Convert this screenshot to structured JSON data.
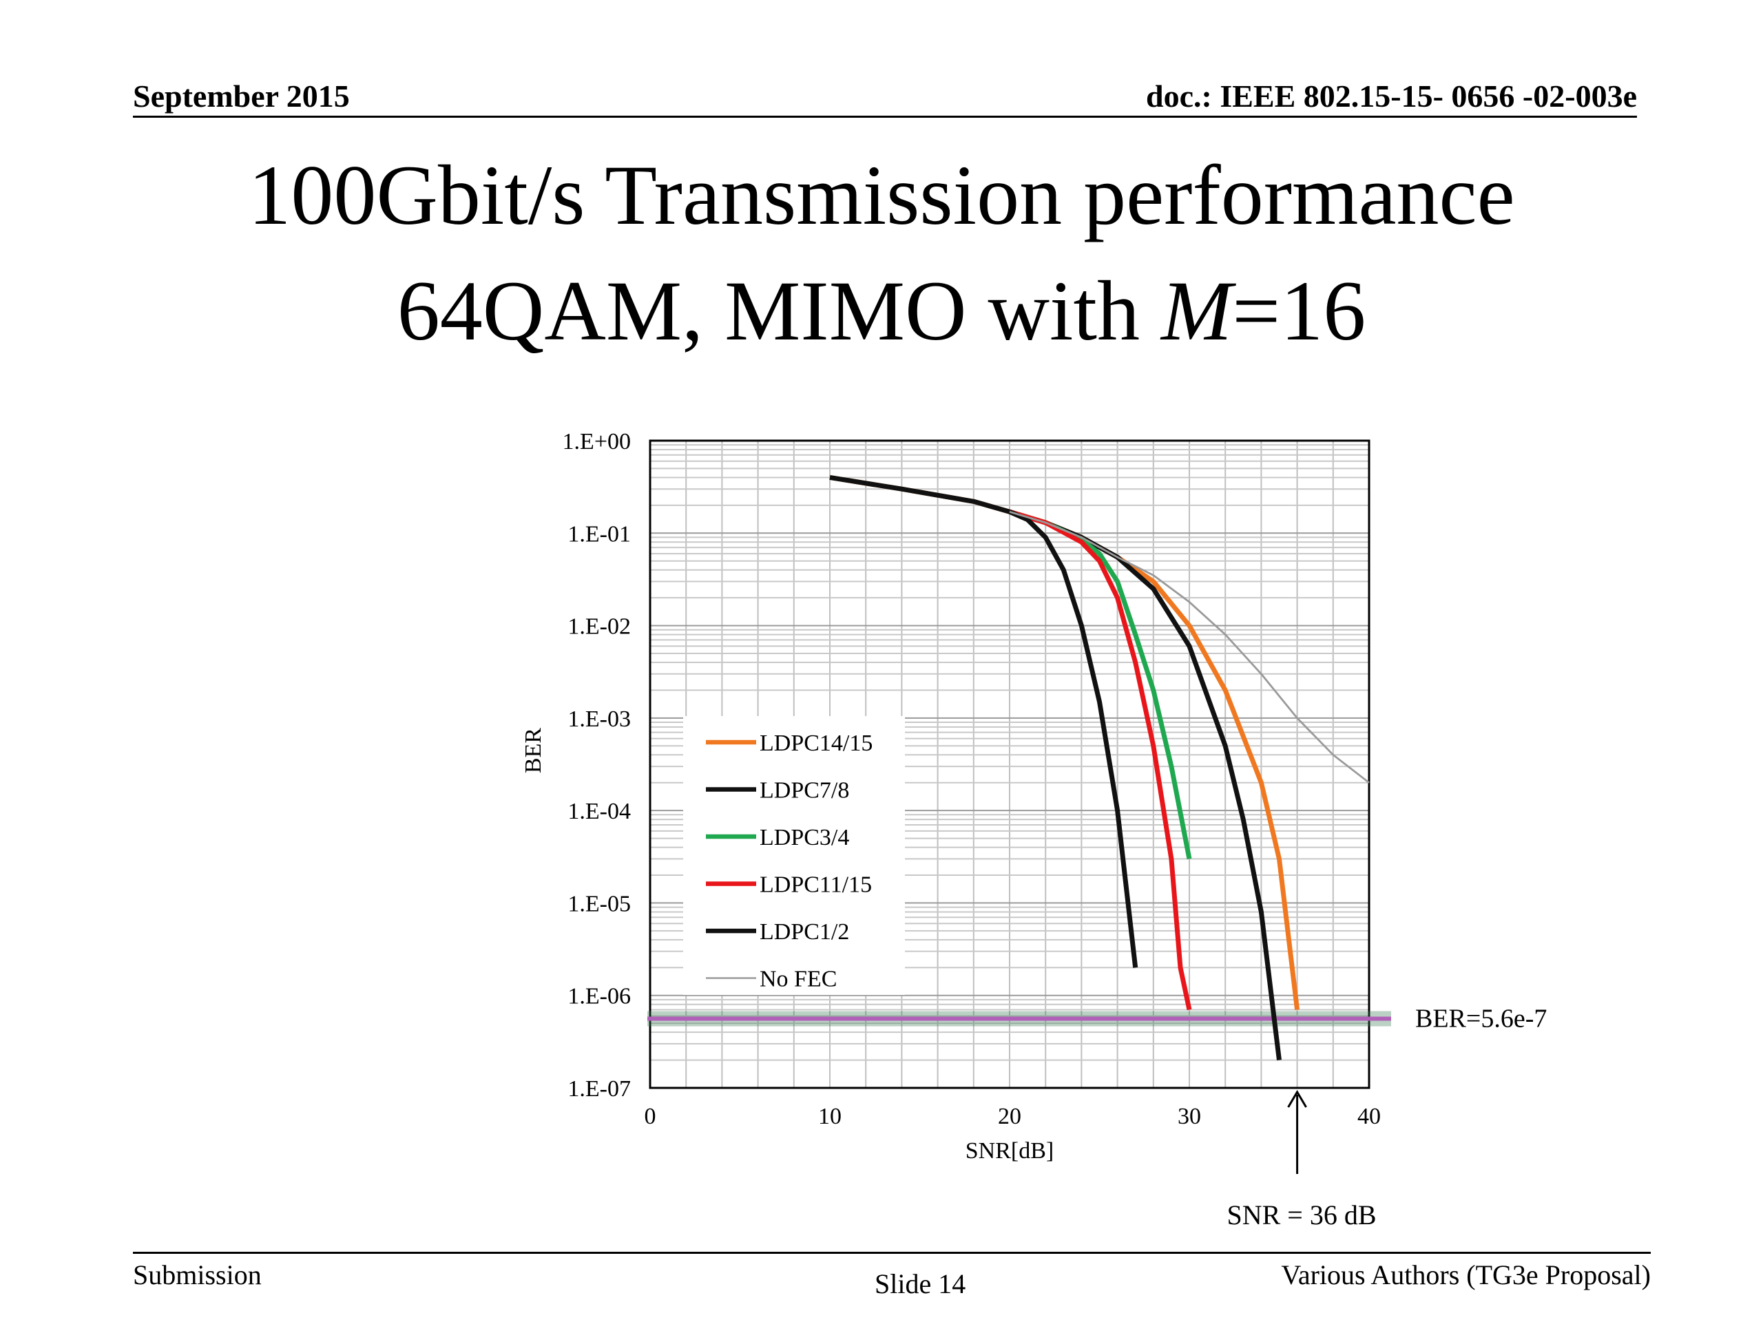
{
  "header": {
    "date": "September 2015",
    "doc": "doc.: IEEE 802.15-15- 0656 -02-003e"
  },
  "title": {
    "line1": "100Gbit/s Transmission performance",
    "line2_prefix": "64QAM, MIMO with ",
    "line2_italic": "M",
    "line2_suffix": "=16"
  },
  "footer": {
    "left": "Submission",
    "center": "Slide 14",
    "right": "Various Authors (TG3e Proposal)"
  },
  "colors": {
    "orange": "#f07820",
    "black": "#111111",
    "green": "#1fa84f",
    "red": "#e8161b",
    "gray": "#9a9a9a",
    "threshold": "#b060b8",
    "threshold_glow": "#3c7a55"
  },
  "chart_data": {
    "type": "line",
    "xlabel": "SNR[dB]",
    "ylabel": "BER",
    "xlim": [
      0,
      40
    ],
    "ylim": [
      1e-07,
      1
    ],
    "yscale": "log",
    "xticks": [
      0,
      10,
      20,
      30,
      40
    ],
    "xtick_labels": [
      "0",
      "10",
      "20",
      "30",
      "40"
    ],
    "yticks": [
      1,
      0.1,
      0.01,
      0.001,
      0.0001,
      1e-05,
      1e-06,
      1e-07
    ],
    "ytick_labels": [
      "1.E+00",
      "1.E-01",
      "1.E-02",
      "1.E-03",
      "1.E-04",
      "1.E-05",
      "1.E-06",
      "1.E-07"
    ],
    "grid": true,
    "legend_position": "left-middle",
    "series": [
      {
        "name": "LDPC14/15",
        "color": "#f07820",
        "width": 5,
        "x": [
          10,
          14,
          18,
          20,
          22,
          24,
          26,
          28,
          30,
          32,
          34,
          35,
          36
        ],
        "y": [
          0.4,
          0.3,
          0.22,
          0.17,
          0.13,
          0.09,
          0.055,
          0.03,
          0.01,
          0.002,
          0.0002,
          3e-05,
          7e-07
        ]
      },
      {
        "name": "LDPC7/8",
        "color": "#111111",
        "width": 5,
        "x": [
          10,
          14,
          18,
          20,
          22,
          24,
          26,
          28,
          30,
          32,
          33,
          34,
          35
        ],
        "y": [
          0.4,
          0.3,
          0.22,
          0.17,
          0.13,
          0.09,
          0.055,
          0.025,
          0.006,
          0.0005,
          8e-05,
          8e-06,
          2e-07
        ]
      },
      {
        "name": "LDPC3/4",
        "color": "#1fa84f",
        "width": 5,
        "x": [
          20,
          22,
          24,
          25,
          26,
          27,
          28,
          29,
          30
        ],
        "y": [
          0.17,
          0.13,
          0.085,
          0.06,
          0.03,
          0.008,
          0.002,
          0.0003,
          3e-05
        ]
      },
      {
        "name": "LDPC11/15",
        "color": "#e8161b",
        "width": 5,
        "x": [
          20,
          22,
          24,
          25,
          26,
          27,
          28,
          29,
          29.5,
          30
        ],
        "y": [
          0.17,
          0.13,
          0.08,
          0.05,
          0.02,
          0.004,
          0.0005,
          3e-05,
          2e-06,
          7e-07
        ]
      },
      {
        "name": "LDPC1/2",
        "color": "#111111",
        "width": 5,
        "x": [
          20,
          21,
          22,
          23,
          24,
          25,
          26,
          27
        ],
        "y": [
          0.17,
          0.14,
          0.09,
          0.04,
          0.01,
          0.0015,
          0.0001,
          2e-06
        ]
      },
      {
        "name": "No FEC",
        "color": "#9a9a9a",
        "width": 2,
        "x": [
          20,
          22,
          24,
          26,
          28,
          30,
          32,
          34,
          36,
          38,
          40
        ],
        "y": [
          0.17,
          0.13,
          0.09,
          0.055,
          0.035,
          0.018,
          0.008,
          0.003,
          0.001,
          0.0004,
          0.0002
        ]
      }
    ],
    "annotations": [
      {
        "type": "hline",
        "y": 5.6e-07,
        "label": "BER=5.6e-7"
      },
      {
        "type": "arrow",
        "x": 36,
        "label": "SNR = 36 dB"
      }
    ]
  }
}
